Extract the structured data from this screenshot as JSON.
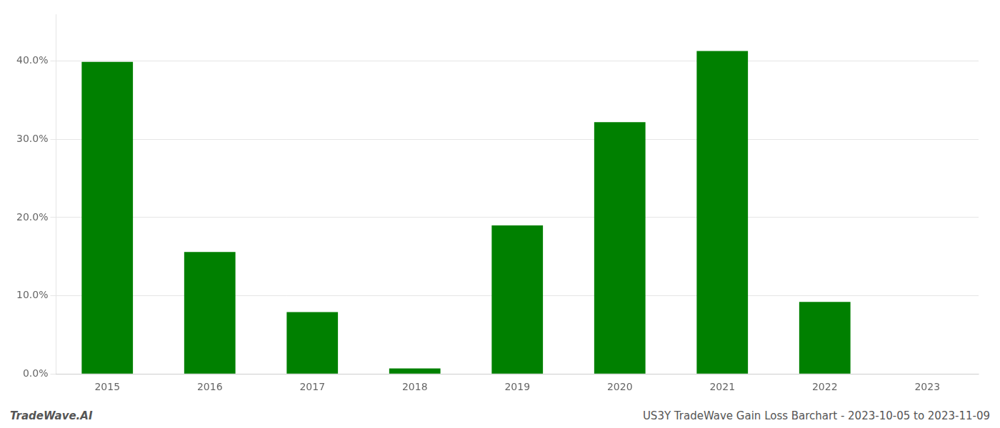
{
  "chart_data": {
    "type": "bar",
    "categories": [
      "2015",
      "2016",
      "2017",
      "2018",
      "2019",
      "2020",
      "2021",
      "2022",
      "2023"
    ],
    "values": [
      0.399,
      0.156,
      0.079,
      0.007,
      0.19,
      0.322,
      0.413,
      0.092,
      0.0
    ],
    "color": "#008000",
    "ylim": [
      0,
      0.46
    ],
    "yticks": [
      {
        "value": 0.0,
        "label": "0.0%"
      },
      {
        "value": 0.1,
        "label": "10.0%"
      },
      {
        "value": 0.2,
        "label": "20.0%"
      },
      {
        "value": 0.3,
        "label": "30.0%"
      },
      {
        "value": 0.4,
        "label": "40.0%"
      }
    ],
    "grid": true,
    "annotations": [
      "TradeWave.AI",
      "US3Y TradeWave Gain Loss Barchart - 2023-10-05 to 2023-11-09"
    ]
  }
}
